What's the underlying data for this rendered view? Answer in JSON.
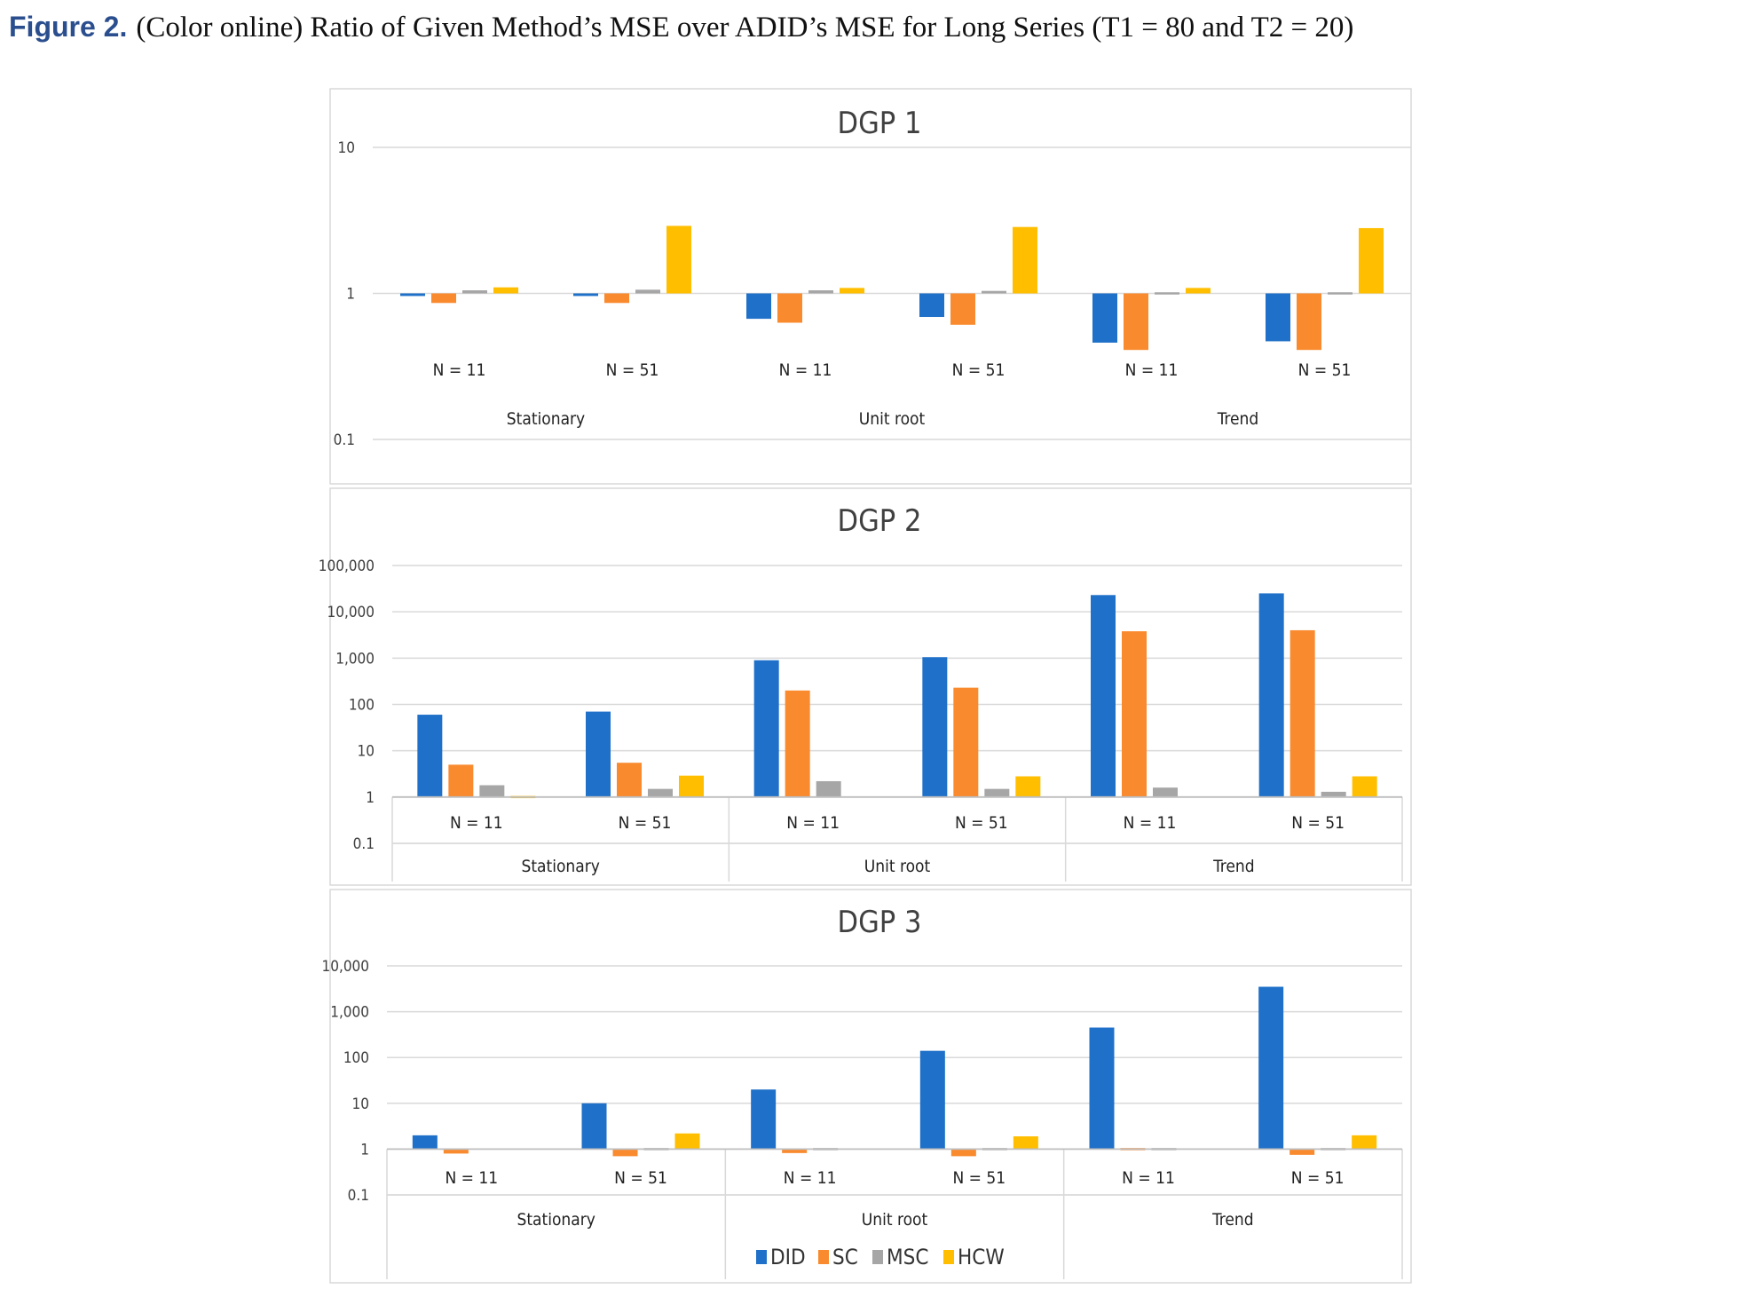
{
  "caption": {
    "label": "Figure 2.",
    "text": "(Color online) Ratio of Given Method’s MSE over ADID’s MSE for Long Series (T1 = 80 and T2 = 20)"
  },
  "colors": {
    "DID": "#1f70c8",
    "SC": "#f98a2e",
    "MSC": "#a6a6a6",
    "HCW": "#ffbe00",
    "grid": "#d9d9d9",
    "text": "#404040"
  },
  "chart_data": [
    {
      "type": "bar",
      "title": "DGP 1",
      "yscale": "log",
      "yticks": [
        "10",
        "1",
        "0.1"
      ],
      "ylim": [
        0.1,
        10
      ],
      "groups": [
        "Stationary",
        "Unit root",
        "Trend"
      ],
      "categories": [
        "N = 11",
        "N = 51",
        "N = 11",
        "N = 51",
        "N = 11",
        "N = 51"
      ],
      "series": [
        {
          "name": "DID",
          "values": [
            0.96,
            0.96,
            0.67,
            0.69,
            0.46,
            0.47
          ]
        },
        {
          "name": "SC",
          "values": [
            0.86,
            0.86,
            0.63,
            0.61,
            0.41,
            0.41
          ]
        },
        {
          "name": "MSC",
          "values": [
            1.05,
            1.06,
            1.05,
            1.04,
            1.03,
            1.02
          ]
        },
        {
          "name": "HCW",
          "values": [
            1.1,
            2.9,
            1.09,
            2.85,
            1.09,
            2.8
          ]
        }
      ]
    },
    {
      "type": "bar",
      "title": "DGP 2",
      "yscale": "log",
      "yticks": [
        "100,000",
        "10,000",
        "1,000",
        "100",
        "10",
        "1",
        "0.1"
      ],
      "ylim": [
        0.1,
        100000
      ],
      "groups": [
        "Stationary",
        "Unit root",
        "Trend"
      ],
      "categories": [
        "N = 11",
        "N = 51",
        "N = 11",
        "N = 51",
        "N = 11",
        "N = 51"
      ],
      "series": [
        {
          "name": "DID",
          "values": [
            60,
            70,
            900,
            1050,
            23000,
            25000
          ]
        },
        {
          "name": "SC",
          "values": [
            5,
            5.5,
            200,
            230,
            3800,
            4000
          ]
        },
        {
          "name": "MSC",
          "values": [
            1.8,
            1.5,
            2.2,
            1.5,
            1.6,
            1.3
          ]
        },
        {
          "name": "HCW",
          "values": [
            1.02,
            2.9,
            null,
            2.8,
            null,
            2.8
          ]
        }
      ]
    },
    {
      "type": "bar",
      "title": "DGP 3",
      "yscale": "log",
      "yticks": [
        "10,000",
        "1,000",
        "100",
        "10",
        "1",
        "0.1"
      ],
      "ylim": [
        0.1,
        10000
      ],
      "groups": [
        "Stationary",
        "Unit root",
        "Trend"
      ],
      "categories": [
        "N = 11",
        "N = 51",
        "N = 11",
        "N = 51",
        "N = 11",
        "N = 51"
      ],
      "series": [
        {
          "name": "DID",
          "values": [
            2,
            10,
            20,
            140,
            450,
            3500
          ]
        },
        {
          "name": "SC",
          "values": [
            0.8,
            0.7,
            0.82,
            0.7,
            0.9,
            0.75
          ]
        },
        {
          "name": "MSC",
          "values": [
            null,
            1.1,
            0.92,
            1.03,
            0.93,
            1.05
          ]
        },
        {
          "name": "HCW",
          "values": [
            null,
            2.2,
            null,
            1.9,
            null,
            2.0
          ]
        }
      ]
    }
  ],
  "legend": [
    {
      "name": "DID"
    },
    {
      "name": "SC"
    },
    {
      "name": "MSC"
    },
    {
      "name": "HCW"
    }
  ]
}
